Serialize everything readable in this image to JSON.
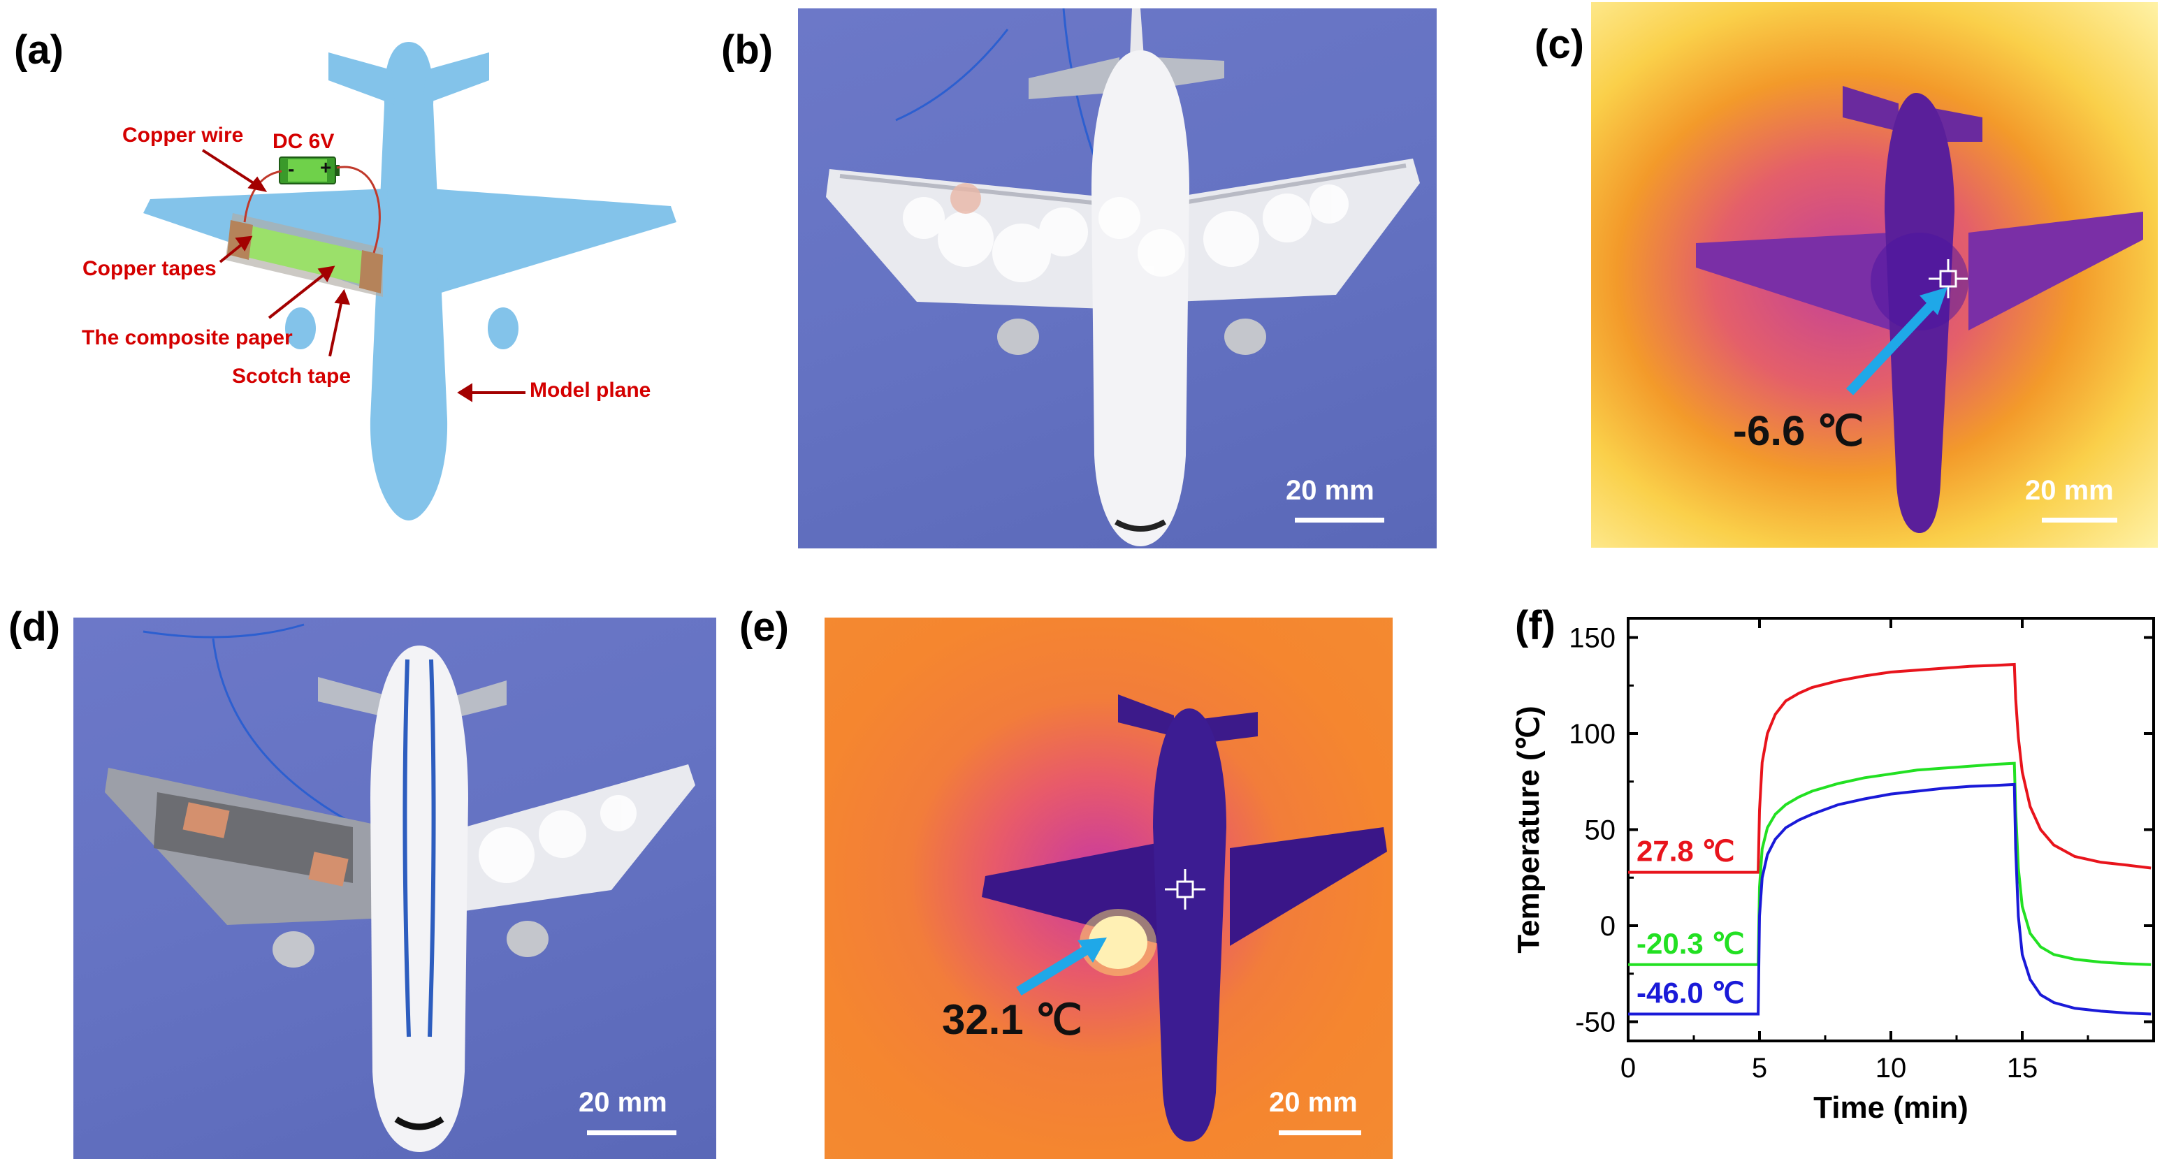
{
  "panels": {
    "a": {
      "label": "(a)",
      "annotations": {
        "copper_wire": "Copper wire",
        "dc": "DC 6V",
        "minus": "-",
        "plus": "+",
        "copper_tapes": "Copper tapes",
        "composite_paper": "The composite paper",
        "scotch_tape": "Scotch tape",
        "model_plane": "Model plane"
      },
      "colors": {
        "plane": "#83c3ea",
        "annotation": "#d40000",
        "paper": "#9be06a",
        "copper": "#b5835a"
      }
    },
    "b": {
      "label": "(b)",
      "scale_bar": "20 mm"
    },
    "c": {
      "label": "(c)",
      "scale_bar": "20 mm",
      "temperature": "-6.6 ℃"
    },
    "d": {
      "label": "(d)",
      "scale_bar": "20 mm"
    },
    "e": {
      "label": "(e)",
      "scale_bar": "20 mm",
      "temperature": "32.1 ℃"
    },
    "f": {
      "label": "(f)"
    }
  },
  "chart_data": {
    "type": "line",
    "xlabel": "Time (min)",
    "ylabel": "Temperature (℃)",
    "xlim": [
      0,
      20
    ],
    "ylim": [
      -60,
      160
    ],
    "xticks": [
      0,
      5,
      10,
      15
    ],
    "yticks": [
      -50,
      0,
      50,
      100,
      150
    ],
    "grid": false,
    "series": [
      {
        "label": "27.8 ℃",
        "color": "#e8141c",
        "x": [
          0,
          4.95,
          5.0,
          5.1,
          5.3,
          5.6,
          6.0,
          6.5,
          7,
          8,
          9,
          10,
          11,
          12,
          13,
          14,
          14.7,
          14.75,
          14.85,
          15.0,
          15.3,
          15.7,
          16.2,
          17,
          18,
          19,
          19.9
        ],
        "y": [
          27.8,
          27.8,
          60,
          85,
          100,
          110,
          117,
          121,
          124,
          127.5,
          130,
          132,
          133,
          134,
          135,
          135.5,
          136,
          118,
          98,
          80,
          62,
          50,
          42,
          36,
          33,
          31.5,
          30
        ]
      },
      {
        "label": "-20.3 ℃",
        "color": "#22e022",
        "x": [
          0,
          4.95,
          5.0,
          5.1,
          5.3,
          5.6,
          6.0,
          6.5,
          7,
          8,
          9,
          10,
          11,
          12,
          13,
          14,
          14.7,
          14.75,
          14.85,
          15.0,
          15.3,
          15.7,
          16.2,
          17,
          18,
          19,
          19.9
        ],
        "y": [
          -20.3,
          -20.3,
          20,
          40,
          51,
          58,
          63,
          67,
          70,
          74,
          77,
          79,
          81,
          82,
          83,
          84,
          84.5,
          60,
          30,
          10,
          -4,
          -11,
          -15,
          -17.5,
          -19,
          -19.8,
          -20.3
        ]
      },
      {
        "label": "-46.0 ℃",
        "color": "#1a1ad8",
        "x": [
          0,
          4.95,
          5.0,
          5.1,
          5.3,
          5.6,
          6.0,
          6.5,
          7,
          8,
          9,
          10,
          11,
          12,
          13,
          14,
          14.7,
          14.75,
          14.85,
          15.0,
          15.3,
          15.7,
          16.2,
          17,
          18,
          19,
          19.9
        ],
        "y": [
          -46,
          -46,
          5,
          25,
          37,
          45,
          51,
          55,
          58,
          63,
          66,
          68.5,
          70,
          71.5,
          72.5,
          73,
          73.5,
          40,
          5,
          -15,
          -28,
          -36,
          -40,
          -43,
          -44.5,
          -45.5,
          -46
        ]
      }
    ]
  }
}
